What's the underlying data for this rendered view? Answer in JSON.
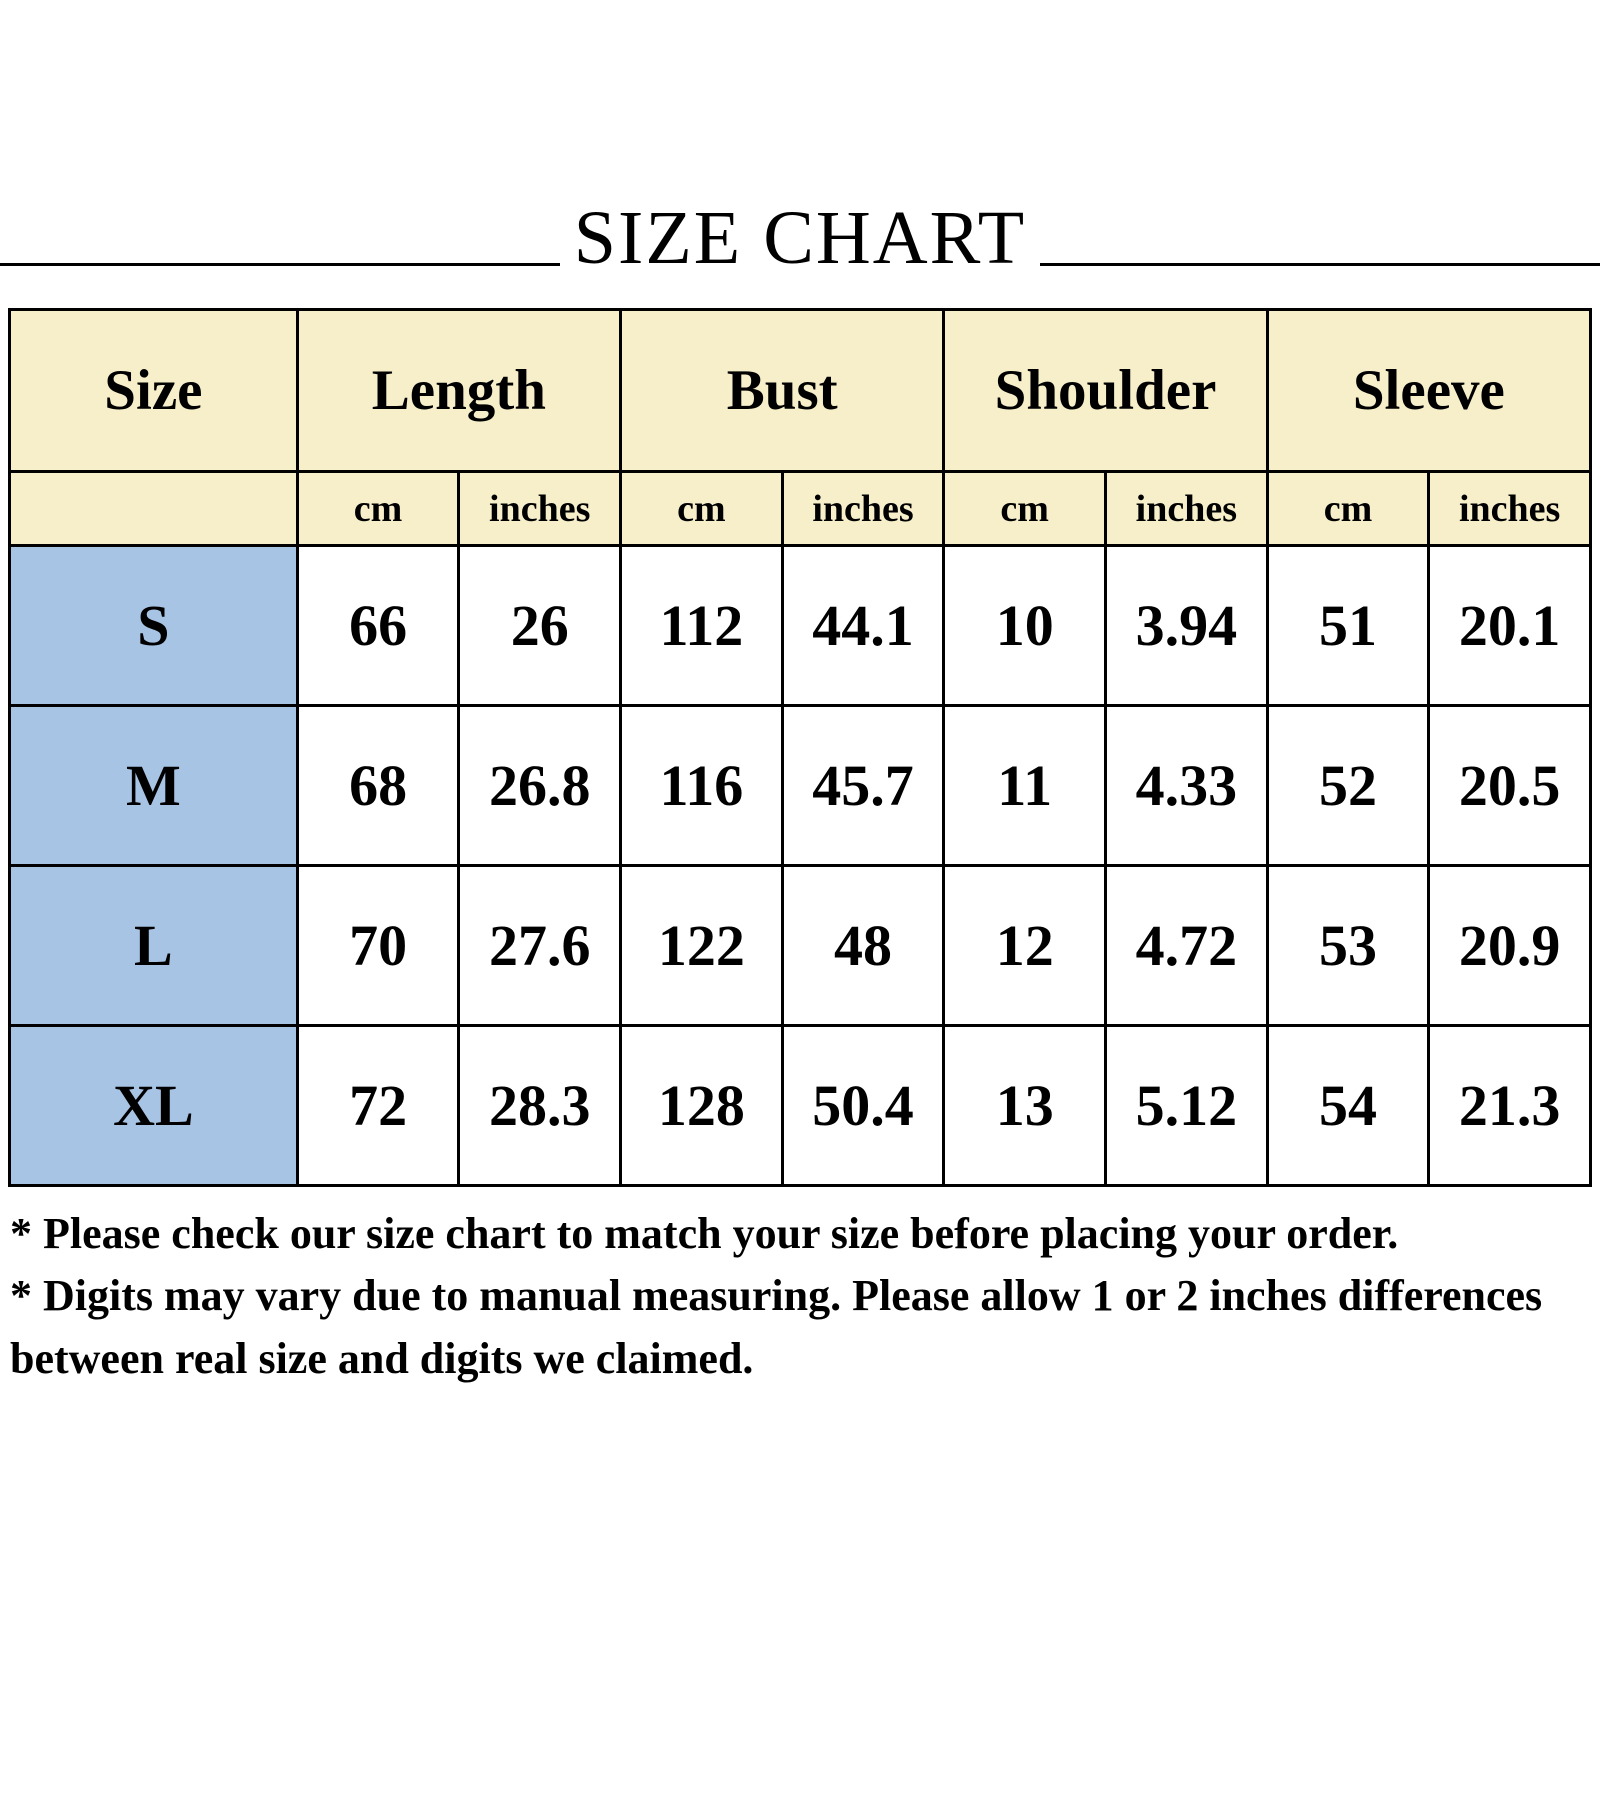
{
  "title": "SIZE CHART",
  "colors": {
    "header_bg": "#f6efc9",
    "size_col_bg": "#a8c4e5",
    "border": "#000000"
  },
  "table": {
    "size_header": "Size",
    "categories": [
      "Length",
      "Bust",
      "Shoulder",
      "Sleeve"
    ],
    "unit_headers": [
      "cm",
      "inches"
    ],
    "rows": [
      {
        "size": "S",
        "values": [
          "66",
          "26",
          "112",
          "44.1",
          "10",
          "3.94",
          "51",
          "20.1"
        ]
      },
      {
        "size": "M",
        "values": [
          "68",
          "26.8",
          "116",
          "45.7",
          "11",
          "4.33",
          "52",
          "20.5"
        ]
      },
      {
        "size": "L",
        "values": [
          "70",
          "27.6",
          "122",
          "48",
          "12",
          "4.72",
          "53",
          "20.9"
        ]
      },
      {
        "size": "XL",
        "values": [
          "72",
          "28.3",
          "128",
          "50.4",
          "13",
          "5.12",
          "54",
          "21.3"
        ]
      }
    ]
  },
  "notes": [
    "* Please check our size chart to match your size before placing your order.",
    "* Digits may vary due to manual measuring. Please allow 1 or 2 inches differences between real size and digits we claimed."
  ],
  "chart_data": {
    "type": "table",
    "title": "SIZE CHART",
    "columns": [
      "Size",
      "Length (cm)",
      "Length (inches)",
      "Bust (cm)",
      "Bust (inches)",
      "Shoulder (cm)",
      "Shoulder (inches)",
      "Sleeve (cm)",
      "Sleeve (inches)"
    ],
    "rows": [
      [
        "S",
        66,
        26,
        112,
        44.1,
        10,
        3.94,
        51,
        20.1
      ],
      [
        "M",
        68,
        26.8,
        116,
        45.7,
        11,
        4.33,
        52,
        20.5
      ],
      [
        "L",
        70,
        27.6,
        122,
        48,
        12,
        4.72,
        53,
        20.9
      ],
      [
        "XL",
        72,
        28.3,
        128,
        50.4,
        13,
        5.12,
        54,
        21.3
      ]
    ]
  }
}
